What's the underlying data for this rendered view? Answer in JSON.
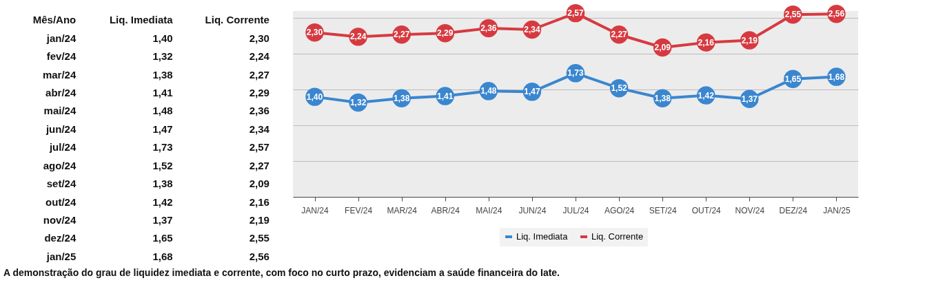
{
  "chart_data": {
    "type": "line",
    "categories": [
      "JAN/24",
      "FEV/24",
      "MAR/24",
      "ABR/24",
      "MAI/24",
      "JUN/24",
      "JUL/24",
      "AGO/24",
      "SET/24",
      "OUT/24",
      "NOV/24",
      "DEZ/24",
      "JAN/25"
    ],
    "series": [
      {
        "name": "Liq. Imediata",
        "color": "#3a86cf",
        "values": [
          1.4,
          1.32,
          1.38,
          1.41,
          1.48,
          1.47,
          1.73,
          1.52,
          1.38,
          1.42,
          1.37,
          1.65,
          1.68
        ],
        "value_labels": [
          "1,40",
          "1,32",
          "1,38",
          "1,41",
          "1,48",
          "1,47",
          "1,73",
          "1,52",
          "1,38",
          "1,42",
          "1,37",
          "1,65",
          "1,68"
        ]
      },
      {
        "name": "Liq. Corrente",
        "color": "#d63a40",
        "values": [
          2.3,
          2.24,
          2.27,
          2.29,
          2.36,
          2.34,
          2.57,
          2.27,
          2.09,
          2.16,
          2.19,
          2.55,
          2.56
        ],
        "value_labels": [
          "2,30",
          "2,24",
          "2,27",
          "2,29",
          "2,36",
          "2,34",
          "2,57",
          "2,27",
          "2,09",
          "2,16",
          "2,19",
          "2,55",
          "2,56"
        ]
      }
    ],
    "grid": "y",
    "legend": "bottom",
    "marker": "circle",
    "line_style": "solid",
    "tick_labels": "x",
    "annotations": [
      "Mês/Ano",
      "Liq. Imediata",
      "Liq. Corrente",
      "jan/24",
      "1,40",
      "2,30",
      "fev/24",
      "1,32",
      "2,24",
      "mar/24",
      "1,38",
      "2,27",
      "abr/24",
      "1,41",
      "2,29",
      "mai/24",
      "1,48",
      "2,36",
      "jun/24",
      "1,47",
      "2,34",
      "jul/24",
      "1,73",
      "2,57",
      "ago/24",
      "1,52",
      "2,27",
      "set/24",
      "1,38",
      "2,09",
      "out/24",
      "1,42",
      "2,16",
      "nov/24",
      "1,37",
      "2,19",
      "dez/24",
      "1,65",
      "2,55",
      "jan/25",
      "1,68",
      "2,56",
      "A demonstração do grau de liquidez imediata e corrente, com foco no curto prazo, evidenciam a saúde financeira do Iate."
    ]
  }
}
